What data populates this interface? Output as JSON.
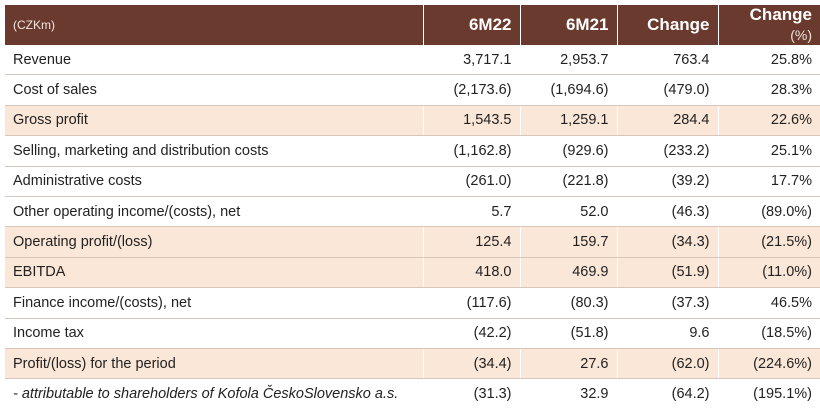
{
  "header": {
    "unit": "(CZKm)",
    "col1": "6M22",
    "col2": "6M21",
    "col3": "Change",
    "col4": "Change",
    "col4_unit": "(%)"
  },
  "rows": [
    {
      "label": "Revenue",
      "v1": "3,717.1",
      "v2": "2,953.7",
      "v3": "763.4",
      "v4": "25.8%"
    },
    {
      "label": "Cost of sales",
      "v1": "(2,173.6)",
      "v2": "(1,694.6)",
      "v3": "(479.0)",
      "v4": "28.3%"
    },
    {
      "label": "Gross profit",
      "v1": "1,543.5",
      "v2": "1,259.1",
      "v3": "284.4",
      "v4": "22.6%"
    },
    {
      "label": "Selling, marketing and distribution costs",
      "v1": "(1,162.8)",
      "v2": "(929.6)",
      "v3": "(233.2)",
      "v4": "25.1%"
    },
    {
      "label": "Administrative costs",
      "v1": "(261.0)",
      "v2": "(221.8)",
      "v3": "(39.2)",
      "v4": "17.7%"
    },
    {
      "label": "Other operating income/(costs), net",
      "v1": "5.7",
      "v2": "52.0",
      "v3": "(46.3)",
      "v4": "(89.0%)"
    },
    {
      "label": "Operating profit/(loss)",
      "v1": "125.4",
      "v2": "159.7",
      "v3": "(34.3)",
      "v4": "(21.5%)"
    },
    {
      "label": "EBITDA",
      "v1": "418.0",
      "v2": "469.9",
      "v3": "(51.9)",
      "v4": "(11.0%)"
    },
    {
      "label": "Finance income/(costs), net",
      "v1": "(117.6)",
      "v2": "(80.3)",
      "v3": "(37.3)",
      "v4": "46.5%"
    },
    {
      "label": "Income tax",
      "v1": "(42.2)",
      "v2": "(51.8)",
      "v3": "9.6",
      "v4": "(18.5%)"
    },
    {
      "label": "Profit/(loss) for the period",
      "v1": "(34.4)",
      "v2": "27.6",
      "v3": "(62.0)",
      "v4": "(224.6%)"
    },
    {
      "label": "- attributable to shareholders of Kofola ČeskoSlovensko a.s.",
      "v1": "(31.3)",
      "v2": "32.9",
      "v3": "(64.2)",
      "v4": "(195.1%)"
    }
  ],
  "colors": {
    "header_bg": "#6b3a2e",
    "highlight_bg": "#fbe7d7"
  }
}
